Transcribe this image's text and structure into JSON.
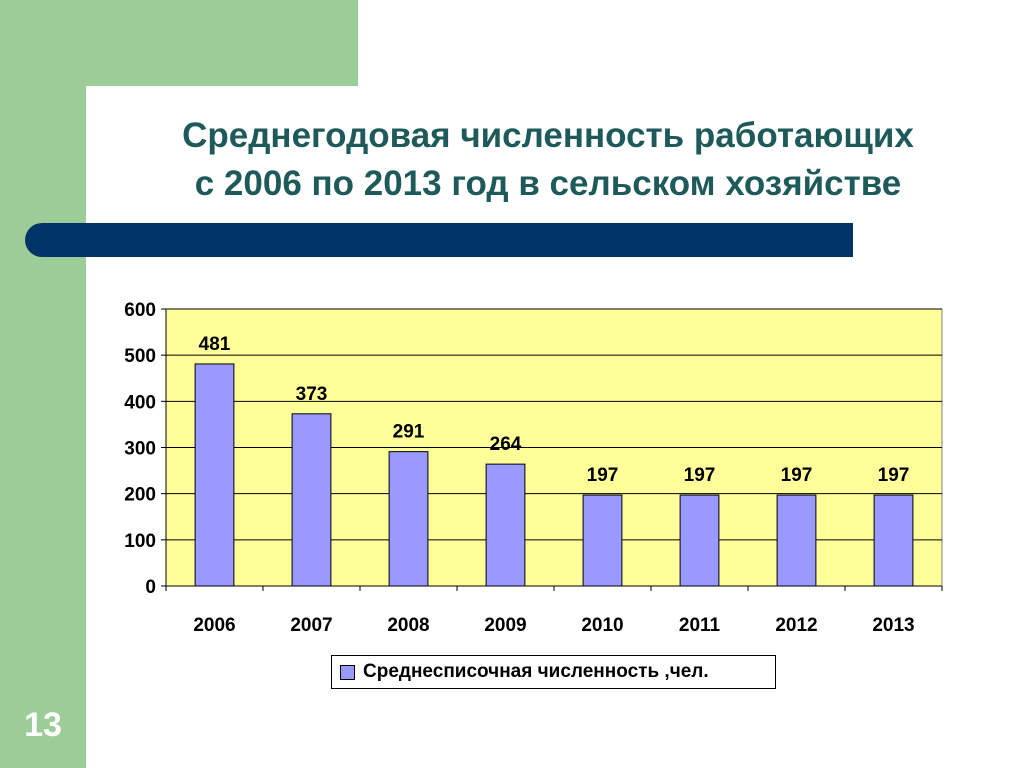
{
  "slide": {
    "title_line1": "Среднегодовая численность работающих",
    "title_line2": "с 2006 по 2013 год в сельском хозяйстве",
    "number": "13"
  },
  "colors": {
    "accent_green": "#9ccc98",
    "title_color": "#1f5a5a",
    "bar_blue": "#003366",
    "plot_bg": "#ffff99",
    "bar_fill": "#9999ff"
  },
  "chart_data": {
    "type": "bar",
    "categories": [
      "2006",
      "2007",
      "2008",
      "2009",
      "2010",
      "2011",
      "2012",
      "2013"
    ],
    "series": [
      {
        "name": "Среднесписочная численность ,чел.",
        "values": [
          481,
          373,
          291,
          264,
          197,
          197,
          197,
          197
        ]
      }
    ],
    "ylim": [
      0,
      600
    ],
    "yticks": [
      0,
      100,
      200,
      300,
      400,
      500,
      600
    ],
    "grid": true,
    "data_labels": true,
    "legend_position": "bottom"
  }
}
